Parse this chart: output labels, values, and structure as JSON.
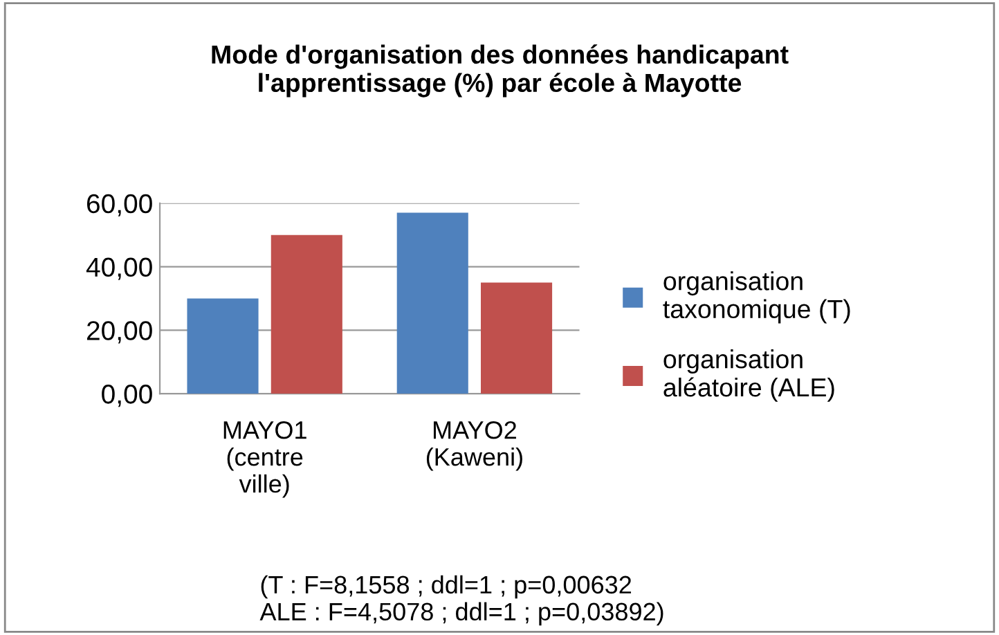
{
  "chart_data": {
    "type": "bar",
    "title": "Mode d'organisation des données handicapant\nl'apprentissage (%) par école à Mayotte",
    "categories": [
      "MAYO1\n(centre\nville)",
      "MAYO2\n(Kaweni)"
    ],
    "series": [
      {
        "name": "organisation\ntaxonomique (T)",
        "color": "#4f81bd",
        "values": [
          30,
          57
        ]
      },
      {
        "name": "organisation\naléatoire (ALE)",
        "color": "#c0504d",
        "values": [
          50,
          35
        ]
      }
    ],
    "ylim": [
      0,
      60
    ],
    "yticks": [
      {
        "value": 0,
        "label": "0,00"
      },
      {
        "value": 20,
        "label": "20,00"
      },
      {
        "value": 40,
        "label": "40,00"
      },
      {
        "value": 60,
        "label": "60,00"
      }
    ],
    "grid": "y",
    "legend": "right",
    "annotations": [
      "(T : F=8,1558 ; ddl=1 ; p=0,00632\nALE : F=4,5078 ; ddl=1 ; p=0,03892)"
    ]
  }
}
